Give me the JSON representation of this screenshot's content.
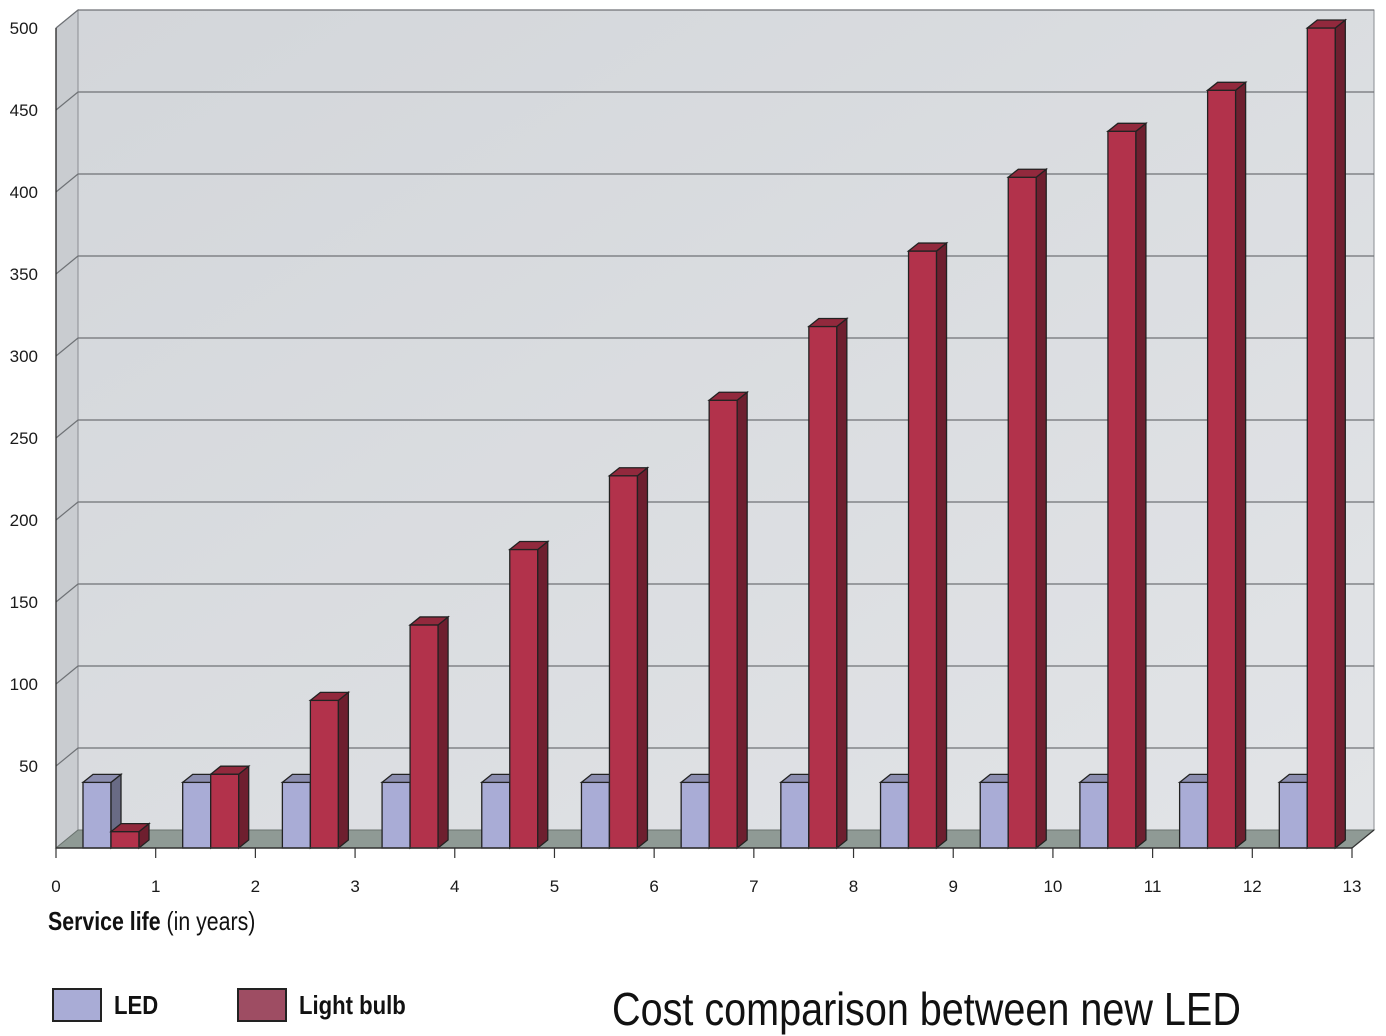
{
  "chart_data": {
    "type": "bar",
    "x_tick_labels": [
      "0",
      "1",
      "2",
      "3",
      "4",
      "5",
      "6",
      "7",
      "8",
      "9",
      "10",
      "11",
      "12",
      "13"
    ],
    "categories": [
      "1",
      "2",
      "3",
      "4",
      "5",
      "6",
      "7",
      "8",
      "9",
      "10",
      "11",
      "12",
      "13"
    ],
    "series": [
      {
        "name": "LED",
        "color": "#a9acd6",
        "values": [
          40,
          40,
          40,
          40,
          40,
          40,
          40,
          40,
          40,
          40,
          40,
          40,
          40
        ]
      },
      {
        "name": "Light bulb",
        "color": "#b2324b",
        "values": [
          10,
          45,
          90,
          136,
          182,
          227,
          273,
          318,
          364,
          409,
          437,
          462,
          500
        ]
      }
    ],
    "y_ticks": [
      50,
      100,
      150,
      200,
      250,
      300,
      350,
      400,
      450,
      500
    ],
    "ylim": [
      0,
      500
    ],
    "grid": true,
    "legend_position": "bottom-left",
    "xlabel_bold": "Service life",
    "xlabel_rest": "(in years)",
    "caption": "Cost comparison between new LED"
  }
}
